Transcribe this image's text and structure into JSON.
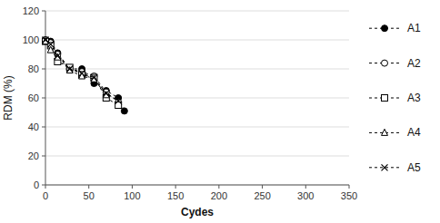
{
  "chart_data": {
    "type": "line",
    "title": "",
    "xlabel": "Cydes",
    "ylabel": "RDM (%)",
    "xlim": [
      0,
      350
    ],
    "ylim": [
      0,
      120
    ],
    "xticks": [
      0,
      50,
      100,
      150,
      200,
      250,
      300,
      350
    ],
    "yticks": [
      0,
      20,
      40,
      60,
      80,
      100,
      120
    ],
    "grid": true,
    "legend": "right",
    "series": [
      {
        "name": "A1",
        "color": "black",
        "marker": "filled-circle",
        "line_style": "dashed",
        "x": [
          0,
          6,
          14,
          28,
          42,
          56,
          70,
          84,
          91
        ],
        "values": [
          100,
          99,
          91,
          80,
          80,
          70,
          65,
          60,
          51
        ]
      },
      {
        "name": "A2",
        "color": "black",
        "marker": "open-circle",
        "line_style": "dashed",
        "x": [
          0,
          6,
          14,
          28,
          42,
          56,
          70,
          84
        ],
        "values": [
          100,
          98,
          90,
          80,
          78,
          75,
          64,
          57
        ]
      },
      {
        "name": "A3",
        "color": "black",
        "marker": "open-square",
        "line_style": "dashed",
        "x": [
          0,
          6,
          14,
          28,
          42,
          56,
          70,
          84
        ],
        "values": [
          99,
          96,
          85,
          81,
          76,
          74,
          60,
          55
        ]
      },
      {
        "name": "A4",
        "color": "black",
        "marker": "open-triangle",
        "line_style": "dashed",
        "x": [
          0,
          6,
          14,
          28,
          42,
          56,
          70
        ],
        "values": [
          99,
          93,
          88,
          79,
          75,
          73,
          62
        ]
      },
      {
        "name": "A5",
        "color": "black",
        "marker": "x",
        "line_style": "dashed",
        "x": [
          0,
          6,
          14,
          28,
          42,
          56,
          70,
          84
        ],
        "values": [
          100,
          97,
          89,
          80,
          77,
          74,
          63,
          58
        ]
      }
    ]
  }
}
